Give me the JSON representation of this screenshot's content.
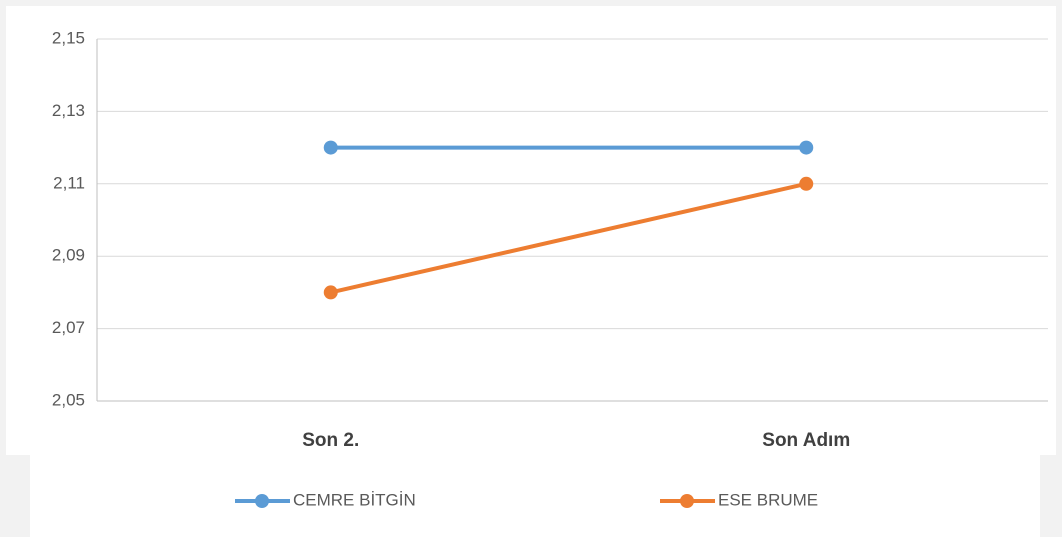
{
  "chart_data": {
    "type": "line",
    "categories": [
      "Son 2.",
      "Son Adım"
    ],
    "series": [
      {
        "name": "CEMRE BİTGİN",
        "color": "#5b9bd5",
        "values": [
          2.12,
          2.12
        ]
      },
      {
        "name": "ESE BRUME",
        "color": "#ed7d31",
        "values": [
          2.08,
          2.11
        ]
      }
    ],
    "ylim": [
      2.05,
      2.15
    ],
    "yticks": [
      {
        "value": 2.05,
        "label": "2,05"
      },
      {
        "value": 2.07,
        "label": "2,07"
      },
      {
        "value": 2.09,
        "label": "2,09"
      },
      {
        "value": 2.11,
        "label": "2,11"
      },
      {
        "value": 2.13,
        "label": "2,13"
      },
      {
        "value": 2.15,
        "label": "2,15"
      }
    ],
    "grid": true,
    "legend": "bottom"
  }
}
